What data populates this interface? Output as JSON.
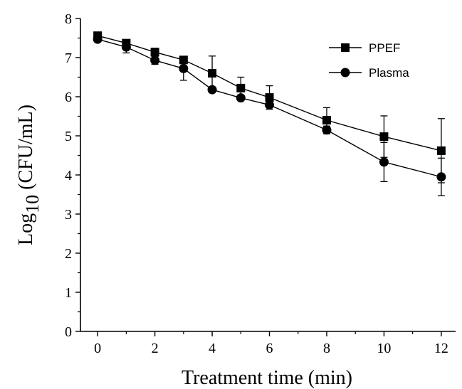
{
  "chart_data": {
    "type": "line",
    "xlabel": "Treatment time (min)",
    "ylabel": {
      "prefix": "Log",
      "subscript": "10",
      "suffix": " (CFU/mL)"
    },
    "xlim": [
      -0.6,
      12.5
    ],
    "ylim": [
      0,
      8
    ],
    "xticks": [
      0,
      2,
      4,
      6,
      8,
      10,
      12
    ],
    "yticks": [
      0,
      1,
      2,
      3,
      4,
      5,
      6,
      7,
      8
    ],
    "grid": false,
    "legend_position": "top-right",
    "series": [
      {
        "name": "PPEF",
        "marker": "square",
        "x": [
          0,
          1,
          2,
          3,
          4,
          5,
          6,
          8,
          10,
          12
        ],
        "y": [
          7.56,
          7.37,
          7.14,
          6.94,
          6.6,
          6.22,
          5.98,
          5.4,
          4.98,
          4.62
        ],
        "err": [
          0.05,
          0.06,
          0.1,
          0.06,
          0.44,
          0.28,
          0.3,
          0.32,
          0.53,
          0.82
        ]
      },
      {
        "name": "Plasma",
        "marker": "circle",
        "x": [
          0,
          1,
          2,
          3,
          4,
          5,
          6,
          8,
          10,
          12
        ],
        "y": [
          7.47,
          7.27,
          6.93,
          6.72,
          6.18,
          5.97,
          5.79,
          5.15,
          4.33,
          3.95
        ],
        "err": [
          0.06,
          0.15,
          0.1,
          0.3,
          0.06,
          0.06,
          0.07,
          0.1,
          0.5,
          0.48
        ]
      }
    ]
  }
}
